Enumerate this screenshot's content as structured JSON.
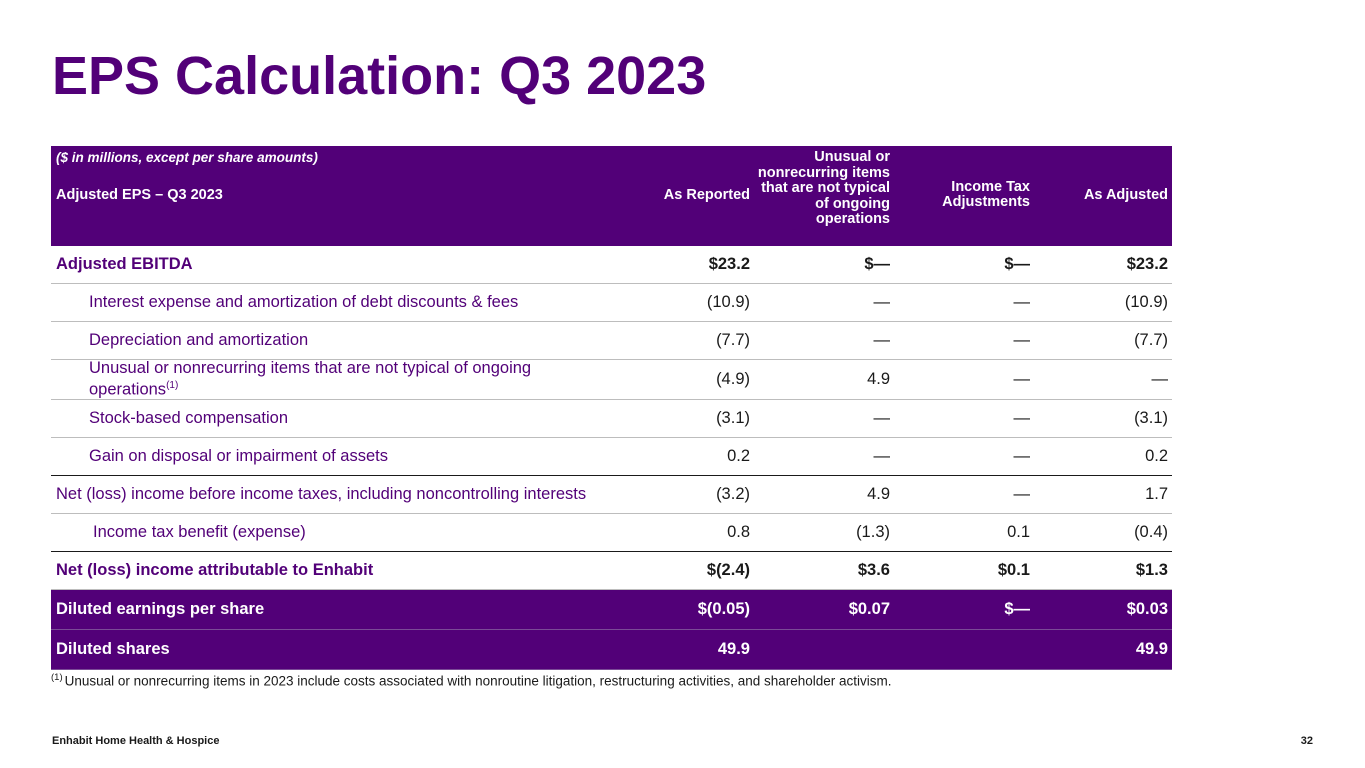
{
  "slide": {
    "title": "EPS Calculation: Q3 2023",
    "footer_company": "Enhabit Home Health & Hospice",
    "page_number": "32"
  },
  "table": {
    "header": {
      "note": "($ in millions, except per share amounts)",
      "label": "Adjusted EPS – Q3 2023",
      "col_reported": "As Reported",
      "col_unusual": "Unusual or nonrecurring items that are not typical of ongoing operations",
      "col_tax": "Income Tax Adjustments",
      "col_adjusted": "As Adjusted"
    },
    "rows": [
      {
        "label": "Adjusted EBITDA",
        "reported": "$23.2",
        "unusual": "$—",
        "tax": "$—",
        "adjusted": "$23.2"
      },
      {
        "label": "Interest expense and amortization of debt discounts & fees",
        "reported": "(10.9)",
        "unusual": "—",
        "tax": "—",
        "adjusted": "(10.9)"
      },
      {
        "label": "Depreciation and amortization",
        "reported": "(7.7)",
        "unusual": "—",
        "tax": "—",
        "adjusted": "(7.7)"
      },
      {
        "label_line1": "Unusual or nonrecurring items that are not typical of ongoing",
        "label_line2": "operations",
        "footnote_marker": "(1)",
        "reported": "(4.9)",
        "unusual": "4.9",
        "tax": "—",
        "adjusted": "—"
      },
      {
        "label": "Stock-based compensation",
        "reported": "(3.1)",
        "unusual": "—",
        "tax": "—",
        "adjusted": "(3.1)"
      },
      {
        "label": "Gain on disposal or impairment of assets",
        "reported": "0.2",
        "unusual": "—",
        "tax": "—",
        "adjusted": "0.2"
      },
      {
        "label": "Net (loss) income before income taxes, including noncontrolling interests",
        "reported": "(3.2)",
        "unusual": "4.9",
        "tax": "—",
        "adjusted": "1.7"
      },
      {
        "label": "Income tax benefit (expense)",
        "reported": "0.8",
        "unusual": "(1.3)",
        "tax": "0.1",
        "adjusted": "(0.4)"
      },
      {
        "label": "Net (loss) income attributable to Enhabit",
        "reported": "$(2.4)",
        "unusual": "$3.6",
        "tax": "$0.1",
        "adjusted": "$1.3"
      },
      {
        "label": "Diluted earnings per share",
        "reported": "$(0.05)",
        "unusual": "$0.07",
        "tax": "$—",
        "adjusted": "$0.03"
      },
      {
        "label": "Diluted shares",
        "reported": "49.9",
        "unusual": "",
        "tax": "",
        "adjusted": "49.9"
      }
    ]
  },
  "footnote": {
    "marker": "(1)",
    "text": "Unusual or nonrecurring items in 2023 include costs associated with nonroutine litigation, restructuring activities, and shareholder activism."
  },
  "colors": {
    "brand_purple": "#520078",
    "text_dark": "#1a1a1a",
    "row_divider": "#bdbdbd"
  }
}
